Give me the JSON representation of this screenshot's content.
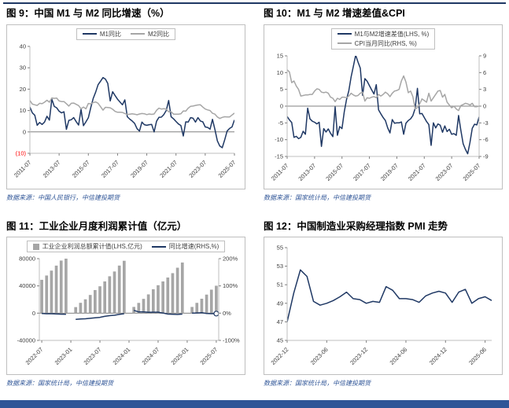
{
  "page": {
    "top_rule_color": "#1f3864",
    "footer_bar_color": "#2e5597",
    "accent_navy": "#1f3864",
    "series_gray": "#a6a6a6",
    "negative_red": "#ff0000",
    "source_text_color": "#2f5597"
  },
  "figures": [
    {
      "title": "图 9：中国 M1 与 M2 同比增速（%）",
      "source": "数据来源：中国人民银行，中信建投期货"
    },
    {
      "title": "图 10：M1 与 M2 增速差值&CPI",
      "source": "数据来源：国家统计局，中信建投期货"
    },
    {
      "title": "图 11：工业企业月度利润累计值（亿元）",
      "source": "数据来源：国家统计局，中信建投期货"
    },
    {
      "title": "图 12：中国制造业采购经理指数 PMI 走势",
      "source": "数据来源：国家统计局，中信建投期货"
    }
  ],
  "chart_data": [
    {
      "type": "line",
      "title": "中国 M1 与 M2 同比增速（%）",
      "x_start": "2011-07",
      "x_end": "2025-07",
      "x_interval_months": 2,
      "x_tick_labels": [
        "2011-07",
        "2013-07",
        "2015-07",
        "2017-07",
        "2019-07",
        "2021-07",
        "2023-07",
        "2025-07"
      ],
      "x_tick_indices": [
        0,
        12,
        24,
        36,
        48,
        60,
        72,
        84
      ],
      "left_axis": {
        "min": -10,
        "max": 40,
        "tick_values": [
          40,
          30,
          20,
          10,
          0,
          -10
        ],
        "tick_labels": [
          "40",
          "30",
          "20",
          "10",
          "0",
          "(10)"
        ]
      },
      "legend_position": "top-center",
      "series": [
        {
          "name": "M1同比",
          "type": "line",
          "axis": "left",
          "color": "#1f3864",
          "values": [
            11.6,
            8.9,
            7.8,
            3.1,
            4.4,
            3.5,
            4.6,
            7.3,
            5.5,
            15.3,
            11.9,
            11.3,
            9.7,
            8.9,
            9.4,
            1.2,
            5.4,
            5.7,
            6.7,
            4.8,
            3.2,
            10.6,
            2.9,
            4.7,
            6.6,
            11.4,
            15.7,
            18.6,
            22.1,
            23.7,
            25.4,
            24.7,
            22.7,
            14.5,
            18.8,
            17.0,
            15.3,
            14.0,
            12.7,
            15.0,
            7.1,
            6.0,
            5.1,
            4.0,
            1.5,
            0.4,
            4.6,
            3.4,
            3.1,
            3.4,
            3.5,
            0.0,
            5.0,
            6.8,
            6.9,
            8.1,
            10.0,
            14.7,
            7.1,
            6.1,
            4.9,
            3.7,
            3.0,
            -1.9,
            4.7,
            4.6,
            6.7,
            6.4,
            4.6,
            6.7,
            5.1,
            4.7,
            2.3,
            2.1,
            1.3,
            5.9,
            1.1,
            -4.2,
            -6.6,
            -7.4,
            -3.7,
            0.4,
            1.6,
            2.3,
            5.6
          ]
        },
        {
          "name": "M2同比",
          "type": "line",
          "axis": "left",
          "color": "#a6a6a6",
          "values": [
            14.7,
            13.0,
            12.7,
            12.4,
            13.4,
            13.2,
            13.9,
            14.8,
            13.9,
            15.9,
            15.7,
            15.8,
            14.5,
            14.2,
            14.2,
            13.2,
            12.1,
            13.4,
            13.5,
            12.9,
            12.3,
            10.8,
            11.6,
            10.8,
            13.3,
            13.1,
            13.7,
            14.0,
            13.4,
            11.8,
            10.2,
            11.5,
            11.4,
            11.3,
            10.6,
            9.6,
            9.2,
            9.2,
            9.1,
            8.6,
            8.2,
            8.3,
            8.5,
            8.3,
            8.0,
            8.4,
            8.6,
            8.5,
            8.1,
            8.4,
            8.2,
            8.4,
            10.1,
            11.1,
            10.7,
            10.9,
            10.7,
            9.4,
            9.4,
            8.3,
            8.3,
            8.3,
            8.5,
            9.8,
            9.7,
            11.1,
            12.0,
            12.1,
            12.4,
            12.6,
            12.7,
            11.6,
            10.7,
            10.3,
            10.0,
            8.7,
            8.3,
            7.0,
            6.3,
            6.8,
            7.1,
            7.0,
            7.0,
            7.9,
            8.8
          ]
        }
      ]
    },
    {
      "type": "line",
      "title": "M1 与 M2 增速差值&CPI",
      "x_start": "2011-07",
      "x_end": "2025-07",
      "x_interval_months": 2,
      "x_tick_labels": [
        "2011-07",
        "2013-07",
        "2015-07",
        "2017-07",
        "2019-07",
        "2021-07",
        "2023-07",
        "2025-07"
      ],
      "x_tick_indices": [
        0,
        12,
        24,
        36,
        48,
        60,
        72,
        84
      ],
      "left_axis": {
        "min": -15,
        "max": 15,
        "tick_values": [
          15,
          10,
          5,
          0,
          -5,
          -10,
          -15
        ],
        "tick_labels": [
          "15",
          "10",
          "5",
          "0",
          "-5",
          "-10",
          "-15"
        ]
      },
      "right_axis": {
        "min": -9,
        "max": 9,
        "tick_values": [
          9,
          6,
          3,
          0,
          -3,
          -6,
          -9
        ],
        "tick_labels": [
          "9",
          "6",
          "3",
          "0",
          "-3",
          "-6",
          "-9"
        ]
      },
      "legend_position": "top-center-stacked",
      "series": [
        {
          "name": "M1与M2增速差值(LHS, %)",
          "type": "line",
          "axis": "left",
          "color": "#1f3864",
          "values": [
            -3.1,
            -4.1,
            -4.9,
            -9.3,
            -9.0,
            -9.7,
            -9.3,
            -7.5,
            -8.4,
            -0.6,
            -3.8,
            -4.5,
            -4.8,
            -5.3,
            -4.8,
            -12.0,
            -6.7,
            -7.7,
            -6.8,
            -8.1,
            -9.1,
            -0.2,
            -8.7,
            -6.1,
            -6.7,
            -1.7,
            2.0,
            4.6,
            8.7,
            11.9,
            15.2,
            13.2,
            11.3,
            3.2,
            8.2,
            7.4,
            6.1,
            4.8,
            3.6,
            6.4,
            -1.1,
            -2.3,
            -3.4,
            -4.3,
            -6.5,
            -8.0,
            -4.0,
            -5.1,
            -5.0,
            -5.0,
            -4.7,
            -8.4,
            -5.1,
            -4.3,
            -3.8,
            -2.8,
            -0.7,
            5.3,
            -2.3,
            -2.2,
            -3.4,
            -4.6,
            -5.5,
            -11.7,
            -5.0,
            -6.5,
            -5.3,
            -5.7,
            -7.8,
            -5.9,
            -7.6,
            -6.9,
            -8.4,
            -8.2,
            -8.7,
            -2.8,
            -7.2,
            -11.2,
            -12.9,
            -14.2,
            -10.8,
            -6.6,
            -5.4,
            -5.6,
            -3.2
          ]
        },
        {
          "name": "CPI当月同比(RHS, %)",
          "type": "line",
          "axis": "right",
          "color": "#a6a6a6",
          "values": [
            6.5,
            6.1,
            4.2,
            4.5,
            3.6,
            3.0,
            1.8,
            1.9,
            2.0,
            2.0,
            2.1,
            2.1,
            2.7,
            3.1,
            3.0,
            2.5,
            2.4,
            2.5,
            2.3,
            1.6,
            1.4,
            0.8,
            1.4,
            1.2,
            1.6,
            1.6,
            1.5,
            1.8,
            2.3,
            2.0,
            1.8,
            1.9,
            2.3,
            2.5,
            0.9,
            1.5,
            1.4,
            1.6,
            1.7,
            1.5,
            2.1,
            1.8,
            2.1,
            2.5,
            2.2,
            1.7,
            2.3,
            2.7,
            2.8,
            3.0,
            4.5,
            5.4,
            4.3,
            2.4,
            2.7,
            1.7,
            -0.5,
            -0.3,
            0.4,
            1.3,
            1.0,
            0.7,
            2.3,
            0.9,
            1.5,
            2.1,
            2.7,
            2.8,
            1.6,
            2.1,
            0.7,
            0.2,
            -0.3,
            0.0,
            -0.5,
            -0.8,
            0.1,
            0.3,
            0.5,
            0.4,
            0.2,
            0.5,
            -0.1,
            -0.1,
            0.0
          ]
        }
      ]
    },
    {
      "type": "bar",
      "title": "工业企业月度利润累计值（亿元）",
      "categories": [
        "2022-07",
        "2022-08",
        "2022-09",
        "2022-10",
        "2022-11",
        "2022-12",
        "2023-01",
        "2023-02",
        "2023-03",
        "2023-04",
        "2023-05",
        "2023-06",
        "2023-07",
        "2023-08",
        "2023-09",
        "2023-10",
        "2023-11",
        "2023-12",
        "2024-01",
        "2024-02",
        "2024-03",
        "2024-04",
        "2024-05",
        "2024-06",
        "2024-07",
        "2024-08",
        "2024-09",
        "2024-10",
        "2024-11",
        "2024-12",
        "2025-01",
        "2025-02",
        "2025-03",
        "2025-04",
        "2025-05",
        "2025-06",
        "2025-07"
      ],
      "x_tick_labels": [
        "2022-07",
        "2023-01",
        "2023-07",
        "2024-01",
        "2024-07",
        "2025-01",
        "2025-07"
      ],
      "x_tick_indices": [
        0,
        6,
        12,
        18,
        24,
        30,
        36
      ],
      "left_axis": {
        "min": -40000,
        "max": 80000,
        "tick_values": [
          80000,
          40000,
          0,
          -40000
        ],
        "tick_labels": [
          "80000",
          "40000",
          "0",
          "-40000"
        ]
      },
      "right_axis": {
        "min": -100,
        "max": 200,
        "tick_values": [
          200,
          100,
          0,
          -100
        ],
        "tick_labels": [
          "200%",
          "100%",
          "0%",
          "-100%"
        ]
      },
      "legend_position": "top-center",
      "series": [
        {
          "name": "工业企业利润总额累计值(LHS,亿元)",
          "type": "bar",
          "axis": "left",
          "color": "#a6a6a6",
          "values": [
            48929,
            55254,
            62442,
            69768,
            77180,
            84039,
            null,
            8872,
            15167,
            20329,
            26689,
            33885,
            39439,
            46558,
            54120,
            61154,
            69823,
            76858,
            null,
            9141,
            15055,
            20947,
            27544,
            35111,
            40992,
            46527,
            52282,
            58680,
            66675,
            74311,
            null,
            9110,
            15094,
            21170,
            27204,
            34465,
            40224
          ]
        },
        {
          "name": "同比增速(RHS,%)",
          "type": "line",
          "axis": "right",
          "color": "#1f3864",
          "end_marker": true,
          "values": [
            -1.1,
            -2.1,
            -2.3,
            -3.0,
            -3.6,
            -4.0,
            null,
            -22.9,
            -21.4,
            -20.6,
            -18.8,
            -16.8,
            -15.5,
            -11.7,
            -9.0,
            -7.8,
            -4.4,
            -2.3,
            null,
            10.2,
            4.3,
            4.3,
            3.4,
            3.5,
            3.6,
            0.5,
            -3.5,
            -4.3,
            -4.7,
            -3.3,
            null,
            -0.3,
            0.8,
            1.4,
            -1.1,
            -1.8,
            -1.7
          ]
        }
      ]
    },
    {
      "type": "line",
      "title": "中国制造业采购经理指数 PMI 走势",
      "categories": [
        "2022-12",
        "2023-01",
        "2023-02",
        "2023-03",
        "2023-04",
        "2023-05",
        "2023-06",
        "2023-07",
        "2023-08",
        "2023-09",
        "2023-10",
        "2023-11",
        "2023-12",
        "2024-01",
        "2024-02",
        "2024-03",
        "2024-04",
        "2024-05",
        "2024-06",
        "2024-07",
        "2024-08",
        "2024-09",
        "2024-10",
        "2024-11",
        "2024-12",
        "2025-01",
        "2025-02",
        "2025-03",
        "2025-04",
        "2025-05",
        "2025-06",
        "2025-07"
      ],
      "x_tick_labels": [
        "2022-12",
        "2023-06",
        "2023-12",
        "2024-06",
        "2024-12",
        "2025-06"
      ],
      "x_tick_indices": [
        0,
        6,
        12,
        18,
        24,
        30
      ],
      "left_axis": {
        "min": 45,
        "max": 55,
        "tick_values": [
          55,
          53,
          51,
          49,
          47,
          45
        ],
        "tick_labels": [
          "55",
          "53",
          "51",
          "49",
          "47",
          "45"
        ]
      },
      "legend_position": "none",
      "series": [
        {
          "name": "制造业PMI",
          "type": "line",
          "axis": "left",
          "color": "#1f3864",
          "values": [
            47.0,
            50.1,
            52.6,
            51.9,
            49.2,
            48.8,
            49.0,
            49.3,
            49.7,
            50.2,
            49.5,
            49.4,
            49.0,
            49.2,
            49.1,
            50.8,
            50.4,
            49.5,
            49.5,
            49.4,
            49.1,
            49.8,
            50.1,
            50.3,
            50.1,
            49.1,
            50.2,
            50.5,
            49.0,
            49.5,
            49.7,
            49.3
          ]
        }
      ]
    }
  ]
}
